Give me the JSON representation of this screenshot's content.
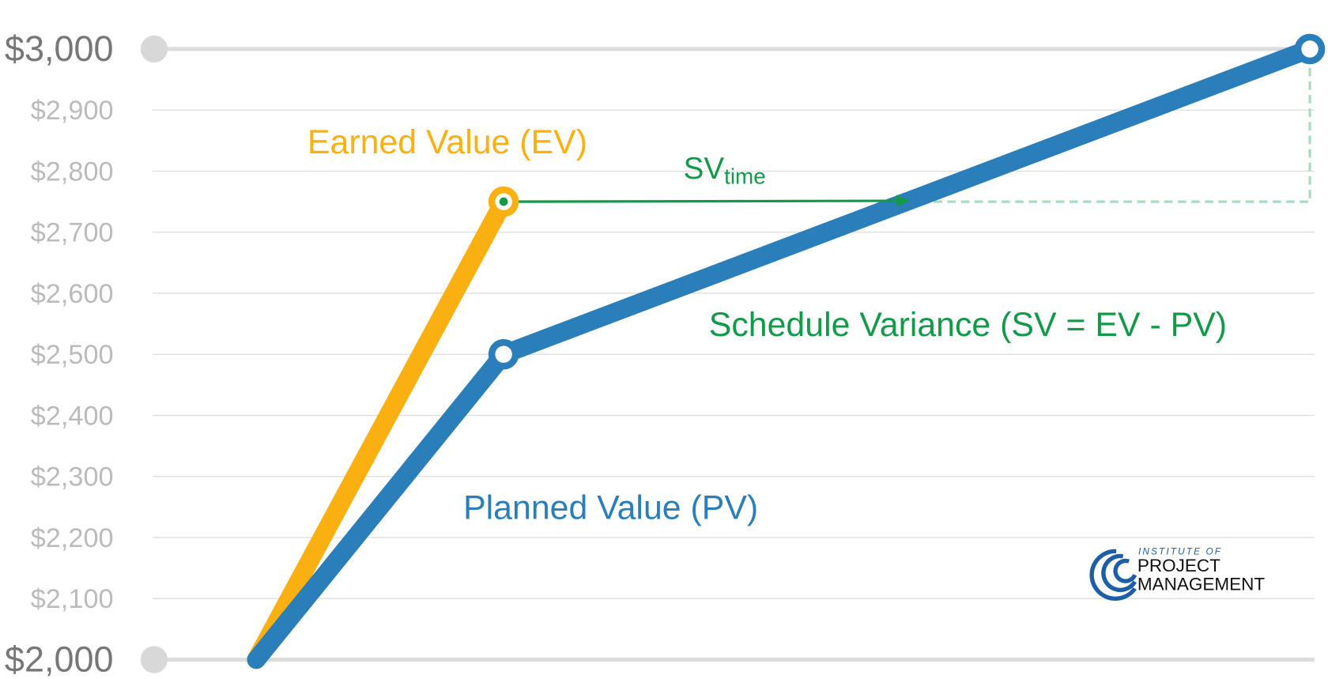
{
  "chart_data": {
    "type": "line",
    "x": [
      0,
      1,
      4.26
    ],
    "xlim": [
      -0.42,
      4.33
    ],
    "series": [
      {
        "name": "Planned Value (PV)",
        "color": "#2a7fba",
        "values": [
          2000,
          2500,
          3000
        ]
      },
      {
        "name": "Earned Value (EV)",
        "color": "#fbb011",
        "values": [
          2000,
          2750,
          null
        ]
      }
    ],
    "ylim": [
      2000,
      3000
    ],
    "yticks": [
      {
        "value": 2000,
        "label": "$2,000"
      },
      {
        "value": 2100,
        "label": "$2,100"
      },
      {
        "value": 2200,
        "label": "$2,200"
      },
      {
        "value": 2300,
        "label": "$2,300"
      },
      {
        "value": 2400,
        "label": "$2,400"
      },
      {
        "value": 2500,
        "label": "$2,500"
      },
      {
        "value": 2600,
        "label": "$2,600"
      },
      {
        "value": 2700,
        "label": "$2,700"
      },
      {
        "value": 2800,
        "label": "$2,800"
      },
      {
        "value": 2900,
        "label": "$2,900"
      },
      {
        "value": 3000,
        "label": "$3,000"
      }
    ],
    "grid": true,
    "annotations": {
      "schedule_variance": {
        "text": "Schedule Variance (SV = EV - PV)",
        "color": "#129a48"
      },
      "sv_time": {
        "text": "SV",
        "subscript": "time",
        "color": "#129a48"
      }
    }
  },
  "logo": {
    "line1": "INSTITUTE OF",
    "line2": "PROJECT",
    "line3": "MANAGEMENT"
  }
}
